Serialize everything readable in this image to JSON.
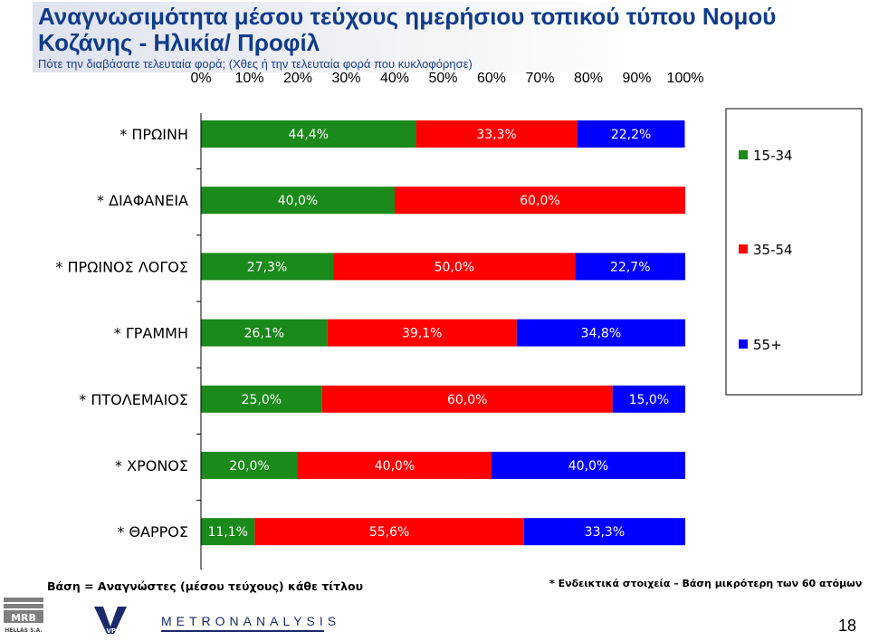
{
  "title_lines": [
    "Αναγνωσιμότητα μέσου τεύχους ημερήσιου τοπικού τύπου Νομού",
    "Κοζάνης - Ηλικία/ Προφίλ"
  ],
  "question": "Πότε την διαβάσατε τελευταία φορά; (Χθες ή την τελευταία φορά που κυκλοφόρησε)",
  "footer_left": "Βάση = Αναγνώστες (μέσου τεύχους) κάθε τίτλου",
  "footer_right": "* Ενδεικτικά στοιχεία – Βάση μικρότερη των 60 ατόμων",
  "page_number": "18",
  "logos": {
    "mrb": "MRB",
    "mrb_sub": "HELLAS S.A.",
    "vprc": "VPRC",
    "metron": "METRONANALYSIS"
  },
  "colors": {
    "15-34": "#1a8a1a",
    "35-54": "#ff0000",
    "55+": "#0000ff"
  },
  "chart_data": {
    "type": "bar",
    "orientation": "horizontal",
    "stacked": "100%",
    "categories": [
      "* ΠΡΩΙΝΗ",
      "* ΔΙΑΦΑΝΕΙΑ",
      "* ΠΡΩΙΝΟΣ ΛΟΓΟΣ",
      "* ΓΡΑΜΜΗ",
      "* ΠΤΟΛΕΜΑΙΟΣ",
      "* ΧΡΟΝΟΣ",
      "* ΘΑΡΡΟΣ"
    ],
    "series": [
      {
        "name": "15-34",
        "color": "#1a8a1a",
        "values": [
          44.4,
          40.0,
          27.3,
          26.1,
          25.0,
          20.0,
          11.1
        ],
        "labels": [
          "44,4%",
          "40,0%",
          "27,3%",
          "26,1%",
          "25,0%",
          "20,0%",
          "11,1%"
        ]
      },
      {
        "name": "35-54",
        "color": "#ff0000",
        "values": [
          33.3,
          60.0,
          50.0,
          39.1,
          60.0,
          40.0,
          55.6
        ],
        "labels": [
          "33,3%",
          "60,0%",
          "50,0%",
          "39,1%",
          "60,0%",
          "40,0%",
          "55,6%"
        ]
      },
      {
        "name": "55+",
        "color": "#0000ff",
        "values": [
          22.2,
          0,
          22.7,
          34.8,
          15.0,
          40.0,
          33.3
        ],
        "labels": [
          "22,2%",
          "",
          "22,7%",
          "34,8%",
          "15,0%",
          "40,0%",
          "33,3%"
        ]
      }
    ],
    "xlim": [
      0,
      100
    ],
    "x_tick_labels": [
      "0%",
      "10%",
      "20%",
      "30%",
      "40%",
      "50%",
      "60%",
      "70%",
      "80%",
      "90%",
      "100%"
    ],
    "legend": {
      "position": "right",
      "entries": [
        "15-34",
        "35-54",
        "55+"
      ]
    },
    "grid": false
  }
}
